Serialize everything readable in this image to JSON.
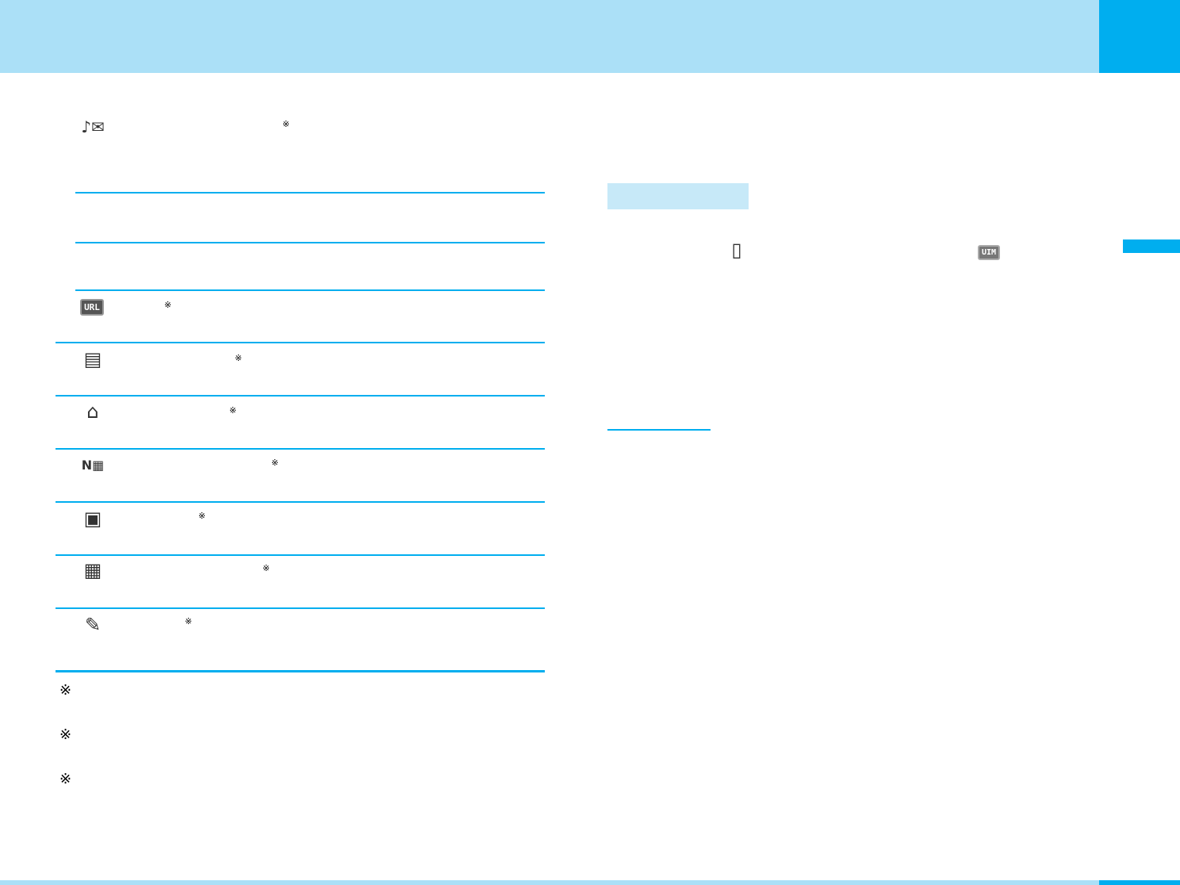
{
  "colors": {
    "header": "#abe0f7",
    "accent": "#00aeef",
    "section_bg": "#c7e9f8"
  },
  "note_mark": "※",
  "icons": {
    "melody_mail": "♪✉",
    "url": "URL",
    "memo": "▤",
    "home": "⌂",
    "n_building": "N▦",
    "bag": "▣",
    "building": "▦",
    "edit_doc": "✎",
    "phone": "▯",
    "uim": "UIM"
  }
}
